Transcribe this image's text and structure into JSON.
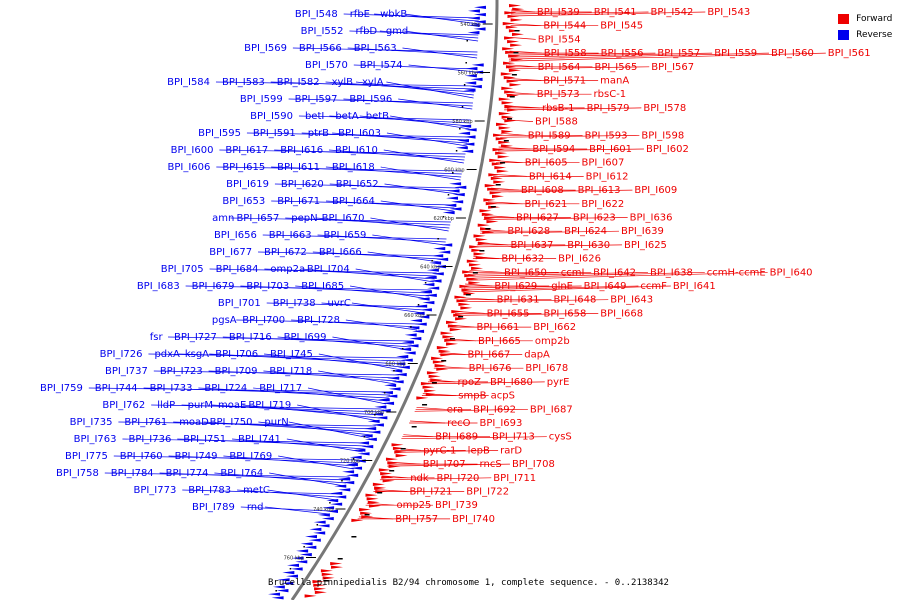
{
  "caption": "Brucella pinnipedialis B2/94 chromosome 1, complete sequence. - 0..2138342",
  "legend": {
    "items": [
      {
        "label": "Forward",
        "color": "#ee0000"
      },
      {
        "label": "Reverse",
        "color": "#0000ee"
      }
    ]
  },
  "colors": {
    "forward": "#ee0000",
    "reverse": "#0000ee",
    "backbone": "#777777",
    "leader": "#000000"
  },
  "ticks": [
    "540 kbp",
    "560 kbp",
    "580 kbp",
    "600 kbp",
    "620 kbp",
    "640 kbp",
    "660 kbp",
    "680 kbp",
    "700 kbp",
    "720 kbp",
    "740 kbp",
    "760 kbp"
  ],
  "reverse_genes": [
    "BPI_I548",
    "rfbE",
    "wbkB",
    "BPI_I552",
    "rfbD",
    "gmd",
    "BPI_I569",
    "BPI_I566",
    "BPI_I563",
    "BPI_I570",
    "BPI_I574",
    "BPI_I584",
    "BPI_I583",
    "BPI_I582",
    "xylB",
    "xylA",
    "BPI_I599",
    "BPI_I597",
    "BPI_I596",
    "BPI_I590",
    "betI",
    "betA",
    "betB",
    "BPI_I595",
    "BPI_I591",
    "ptrB",
    "BPI_I603",
    "BPI_I600",
    "BPI_I617",
    "BPI_I616",
    "BPI_I610",
    "BPI_I606",
    "BPI_I615",
    "BPI_I611",
    "BPI_I618",
    "BPI_I619",
    "BPI_I620",
    "BPI_I652",
    "BPI_I653",
    "BPI_I671",
    "BPI_I664",
    "amn",
    "BPI_I657",
    "pepN",
    "BPI_I670",
    "BPI_I656",
    "BPI_I663",
    "BPI_I659",
    "BPI_I677",
    "BPI_I672",
    "BPI_I666",
    "BPI_I705",
    "BPI_I684",
    "omp2a",
    "BPI_I704",
    "BPI_I683",
    "BPI_I679",
    "BPI_I703",
    "BPI_I685",
    "BPI_I701",
    "BPI_I738",
    "uvrC",
    "pgsA",
    "BPI_I700",
    "BPI_I728",
    "fsr",
    "BPI_I727",
    "BPI_I716",
    "BPI_I699",
    "BPI_I726",
    "pdxA",
    "ksgA",
    "BPI_I706",
    "BPI_I745",
    "BPI_I737",
    "BPI_I723",
    "BPI_I709",
    "BPI_I718",
    "BPI_I759",
    "BPI_I744",
    "BPI_I733",
    "BPI_I724",
    "BPI_I717",
    "BPI_I762",
    "lldP",
    "purM",
    "moaE",
    "BPI_I719",
    "BPI_I735",
    "BPI_I761",
    "moaD",
    "BPI_I750",
    "purN",
    "BPI_I763",
    "BPI_I736",
    "BPI_I751",
    "BPI_I741",
    "BPI_I775",
    "BPI_I760",
    "BPI_I749",
    "BPI_I769",
    "BPI_I758",
    "BPI_I784",
    "BPI_I774",
    "BPI_I764",
    "BPI_I773",
    "BPI_I783",
    "metC",
    "BPI_I789",
    "rnd"
  ],
  "forward_genes": [
    "BPI_I539",
    "BPI_I541",
    "BPI_I542",
    "BPI_I543",
    "BPI_I544",
    "BPI_I545",
    "BPI_I554",
    "BPI_I558",
    "BPI_I556",
    "BPI_I557",
    "BPI_I559",
    "BPI_I560",
    "BPI_I561",
    "BPI_I564",
    "BPI_I565",
    "BPI_I567",
    "BPI_I571",
    "manA",
    "BPI_I573",
    "rbsC-1",
    "rbsB-1",
    "BPI_I579",
    "BPI_I578",
    "BPI_I588",
    "BPI_I589",
    "BPI_I593",
    "BPI_I598",
    "BPI_I594",
    "BPI_I601",
    "BPI_I602",
    "BPI_I605",
    "BPI_I607",
    "BPI_I614",
    "BPI_I612",
    "BPI_I608",
    "BPI_I613",
    "BPI_I609",
    "BPI_I621",
    "BPI_I622",
    "BPI_I627",
    "BPI_I623",
    "BPI_I636",
    "BPI_I628",
    "BPI_I624",
    "BPI_I639",
    "BPI_I637",
    "BPI_I630",
    "BPI_I625",
    "BPI_I632",
    "BPI_I626",
    "BPI_I650",
    "ccmI",
    "BPI_I642",
    "BPI_I638",
    "ccmH-ccmE",
    "BPI_I640",
    "BPI_I629",
    "glnE",
    "BPI_I649",
    "ccmF",
    "BPI_I641",
    "BPI_I631",
    "BPI_I648",
    "BPI_I643",
    "BPI_I655",
    "BPI_I658",
    "BPI_I668",
    "BPI_I661",
    "BPI_I662",
    "BPI_I665",
    "omp2b",
    "BPI_I667",
    "dapA",
    "BPI_I676",
    "BPI_I678",
    "rpoZ",
    "BPI_I680",
    "pyrE",
    "smpB",
    "acpS",
    "era",
    "BPI_I692",
    "BPI_I687",
    "recO",
    "BPI_I693",
    "BPI_I689",
    "BPI_I713",
    "cysS",
    "pyrC-1",
    "lepB",
    "rarD",
    "BPI_I707",
    "rncS",
    "BPI_I708",
    "ndk",
    "BPI_I720",
    "BPI_I711",
    "BPI_I721",
    "BPI_I722",
    "omp25",
    "BPI_I739",
    "BPI_I757",
    "BPI_I740"
  ]
}
